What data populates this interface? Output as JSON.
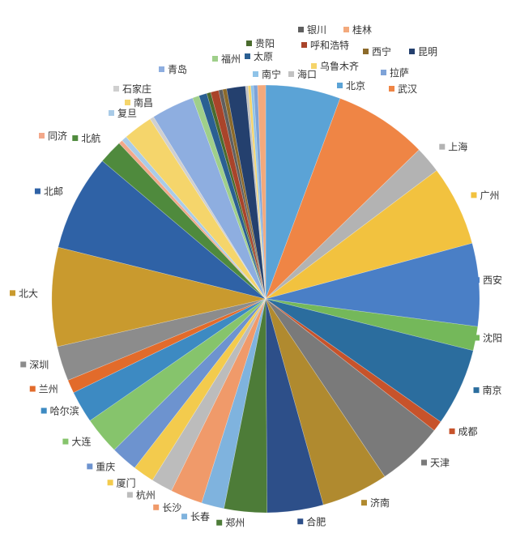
{
  "chart_data": {
    "type": "pie",
    "title": "",
    "slices": [
      {
        "label": "北京",
        "value": 5.6,
        "color": "#5ba3d6"
      },
      {
        "label": "武汉",
        "value": 7.0,
        "color": "#ef8545"
      },
      {
        "label": "上海",
        "value": 2.0,
        "color": "#b3b3b3"
      },
      {
        "label": "广州",
        "value": 6.0,
        "color": "#f2c23f"
      },
      {
        "label": "西安",
        "value": 6.2,
        "color": "#4a7fc6"
      },
      {
        "label": "沈阳",
        "value": 1.8,
        "color": "#74b85a"
      },
      {
        "label": "南京",
        "value": 5.8,
        "color": "#2b6d9e"
      },
      {
        "label": "成都",
        "value": 0.8,
        "color": "#c7532b"
      },
      {
        "label": "天津",
        "value": 5.0,
        "color": "#7a7a7a"
      },
      {
        "label": "济南",
        "value": 5.0,
        "color": "#b08a2f"
      },
      {
        "label": "合肥",
        "value": 4.2,
        "color": "#2d4f89"
      },
      {
        "label": "郑州",
        "value": 3.2,
        "color": "#4d7c38"
      },
      {
        "label": "长春",
        "value": 1.7,
        "color": "#7fb3de"
      },
      {
        "label": "长沙",
        "value": 2.4,
        "color": "#f09a6a"
      },
      {
        "label": "杭州",
        "value": 1.6,
        "color": "#bcbcbc"
      },
      {
        "label": "厦门",
        "value": 1.6,
        "color": "#f3cb4d"
      },
      {
        "label": "重庆",
        "value": 2.0,
        "color": "#6d93cf"
      },
      {
        "label": "大连",
        "value": 2.8,
        "color": "#86c46c"
      },
      {
        "label": "哈尔滨",
        "value": 2.4,
        "color": "#3d8ac2"
      },
      {
        "label": "兰州",
        "value": 1.0,
        "color": "#e26b2b"
      },
      {
        "label": "深圳",
        "value": 2.6,
        "color": "#8c8c8c"
      },
      {
        "label": "北大",
        "value": 7.4,
        "color": "#c99a2e"
      },
      {
        "label": "北邮",
        "value": 7.2,
        "color": "#2f62a6"
      },
      {
        "label": "北航",
        "value": 1.8,
        "color": "#4f8a3d"
      },
      {
        "label": "同济",
        "value": 0.3,
        "color": "#f3a88a"
      },
      {
        "label": "复旦",
        "value": 0.4,
        "color": "#a9cbe7"
      },
      {
        "label": "南昌",
        "value": 2.2,
        "color": "#f5d56b"
      },
      {
        "label": "石家庄",
        "value": 0.3,
        "color": "#cfcfcf"
      },
      {
        "label": "青岛",
        "value": 3.2,
        "color": "#8eaee0"
      },
      {
        "label": "福州",
        "value": 0.5,
        "color": "#9fcf8a"
      },
      {
        "label": "太原",
        "value": 0.6,
        "color": "#2a5f92"
      },
      {
        "label": "贵阳",
        "value": 0.3,
        "color": "#4a6b2d"
      },
      {
        "label": "呼和浩特",
        "value": 0.6,
        "color": "#a9442a"
      },
      {
        "label": "银川",
        "value": 0.3,
        "color": "#5f5f5f"
      },
      {
        "label": "西宁",
        "value": 0.3,
        "color": "#8c6a2a"
      },
      {
        "label": "昆明",
        "value": 1.4,
        "color": "#24406e"
      },
      {
        "label": "海口",
        "value": 0.2,
        "color": "#c2c2c2"
      },
      {
        "label": "乌鲁木齐",
        "value": 0.2,
        "color": "#f5d46a"
      },
      {
        "label": "南宁",
        "value": 0.2,
        "color": "#8fc3e8"
      },
      {
        "label": "拉萨",
        "value": 0.3,
        "color": "#7ea3d8"
      },
      {
        "label": "桂林",
        "value": 0.6,
        "color": "#f3a97c"
      }
    ]
  }
}
